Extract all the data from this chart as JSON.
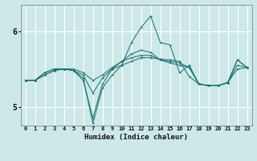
{
  "xlabel": "Humidex (Indice chaleur)",
  "ylabel": "",
  "background_color": "#cce8e8",
  "grid_color": "#ffffff",
  "line_color": "#1a6b6b",
  "xlim": [
    -0.5,
    23.5
  ],
  "ylim": [
    4.75,
    6.35
  ],
  "yticks": [
    5,
    6
  ],
  "xticks": [
    0,
    1,
    2,
    3,
    4,
    5,
    6,
    7,
    8,
    9,
    10,
    11,
    12,
    13,
    14,
    15,
    16,
    17,
    18,
    19,
    20,
    21,
    22,
    23
  ],
  "lines": [
    {
      "x": [
        0,
        1,
        2,
        3,
        4,
        5,
        6,
        7,
        8,
        9,
        10,
        11,
        12,
        13,
        14,
        15,
        16,
        17,
        18,
        19,
        20,
        21,
        22,
        23
      ],
      "y": [
        5.35,
        5.35,
        5.45,
        5.5,
        5.5,
        5.48,
        5.35,
        4.85,
        5.3,
        5.5,
        5.55,
        5.6,
        5.65,
        5.65,
        5.63,
        5.62,
        5.6,
        5.4,
        5.3,
        5.28,
        5.28,
        5.32,
        5.5,
        5.52
      ]
    },
    {
      "x": [
        0,
        1,
        2,
        3,
        4,
        5,
        6,
        7,
        8,
        9,
        10,
        11,
        12,
        13,
        14,
        15,
        16,
        17,
        18,
        19,
        20,
        21,
        22,
        23
      ],
      "y": [
        5.35,
        5.35,
        5.45,
        5.5,
        5.5,
        5.48,
        5.38,
        4.78,
        5.25,
        5.42,
        5.55,
        5.85,
        6.05,
        6.2,
        5.85,
        5.82,
        5.45,
        5.55,
        5.3,
        5.28,
        5.28,
        5.32,
        5.62,
        5.52
      ]
    },
    {
      "x": [
        0,
        1,
        2,
        3,
        4,
        5,
        6,
        7,
        8,
        9,
        10,
        11,
        12,
        13,
        14,
        15,
        16,
        17,
        18,
        19,
        20,
        21,
        22,
        23
      ],
      "y": [
        5.35,
        5.35,
        5.42,
        5.48,
        5.5,
        5.48,
        5.42,
        5.18,
        5.38,
        5.5,
        5.6,
        5.7,
        5.75,
        5.72,
        5.62,
        5.58,
        5.55,
        5.52,
        5.3,
        5.28,
        5.28,
        5.32,
        5.62,
        5.52
      ]
    },
    {
      "x": [
        0,
        1,
        2,
        3,
        4,
        5,
        6,
        7,
        8,
        9,
        10,
        11,
        12,
        13,
        14,
        15,
        16,
        17,
        18,
        19,
        20,
        21,
        22,
        23
      ],
      "y": [
        5.35,
        5.35,
        5.42,
        5.48,
        5.5,
        5.5,
        5.45,
        5.35,
        5.42,
        5.52,
        5.6,
        5.65,
        5.68,
        5.68,
        5.62,
        5.6,
        5.58,
        5.52,
        5.3,
        5.28,
        5.28,
        5.32,
        5.55,
        5.52
      ]
    }
  ]
}
